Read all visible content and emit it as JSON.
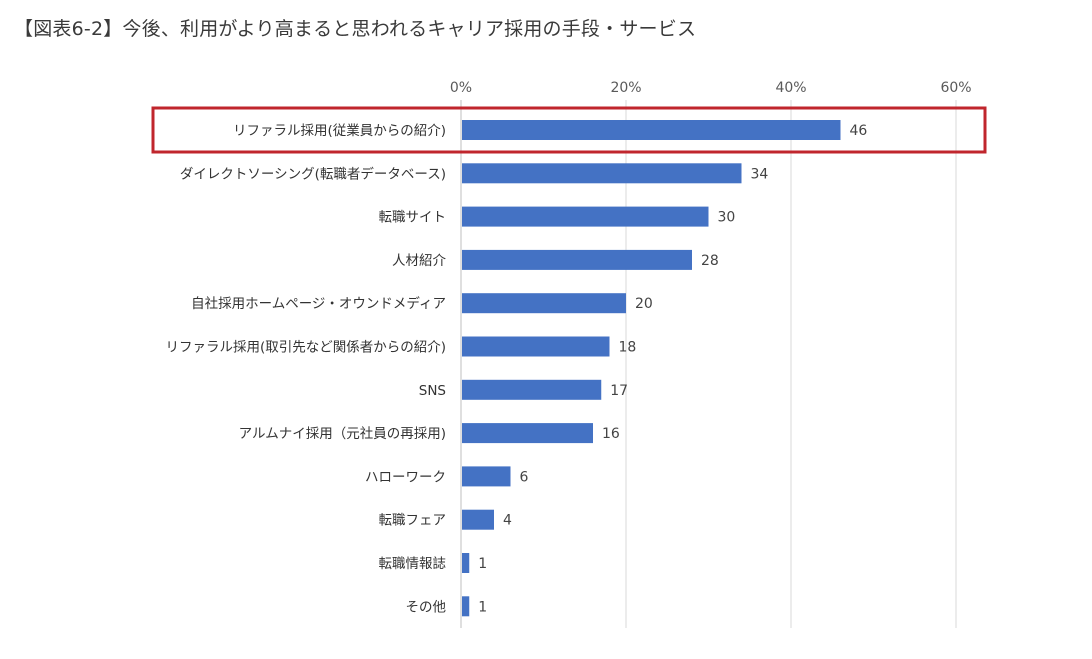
{
  "page": {
    "title": "【図表6-2】今後、利用がより高まると思われるキャリア採用の手段・サービス"
  },
  "colors": {
    "bar": "#4472c4",
    "highlight_box": "#c0262d",
    "gridline": "#d9d9d9",
    "axis": "#bfbfbf"
  },
  "chart_data": {
    "type": "bar",
    "orientation": "horizontal",
    "title": "【図表6-2】今後、利用がより高まると思われるキャリア採用の手段・サービス",
    "xlabel": "",
    "ylabel": "",
    "xlim": [
      0,
      60
    ],
    "x_ticks": [
      0,
      20,
      40,
      60
    ],
    "x_tick_labels": [
      "0%",
      "20%",
      "40%",
      "60%"
    ],
    "x_axis_position": "top",
    "grid": true,
    "categories": [
      "リファラル採用(従業員からの紹介)",
      "ダイレクトソーシング(転職者データベース)",
      "転職サイト",
      "人材紹介",
      "自社採用ホームページ・オウンドメディア",
      "リファラル採用(取引先など関係者からの紹介)",
      "SNS",
      "アルムナイ採用（元社員の再採用)",
      "ハローワーク",
      "転職フェア",
      "転職情報誌",
      "その他"
    ],
    "values": [
      46,
      34,
      30,
      28,
      20,
      18,
      17,
      16,
      6,
      4,
      1,
      1
    ],
    "data_labels": [
      "46",
      "34",
      "30",
      "28",
      "20",
      "18",
      "17",
      "16",
      "6",
      "4",
      "1",
      "1"
    ],
    "highlighted_category_index": 0
  }
}
